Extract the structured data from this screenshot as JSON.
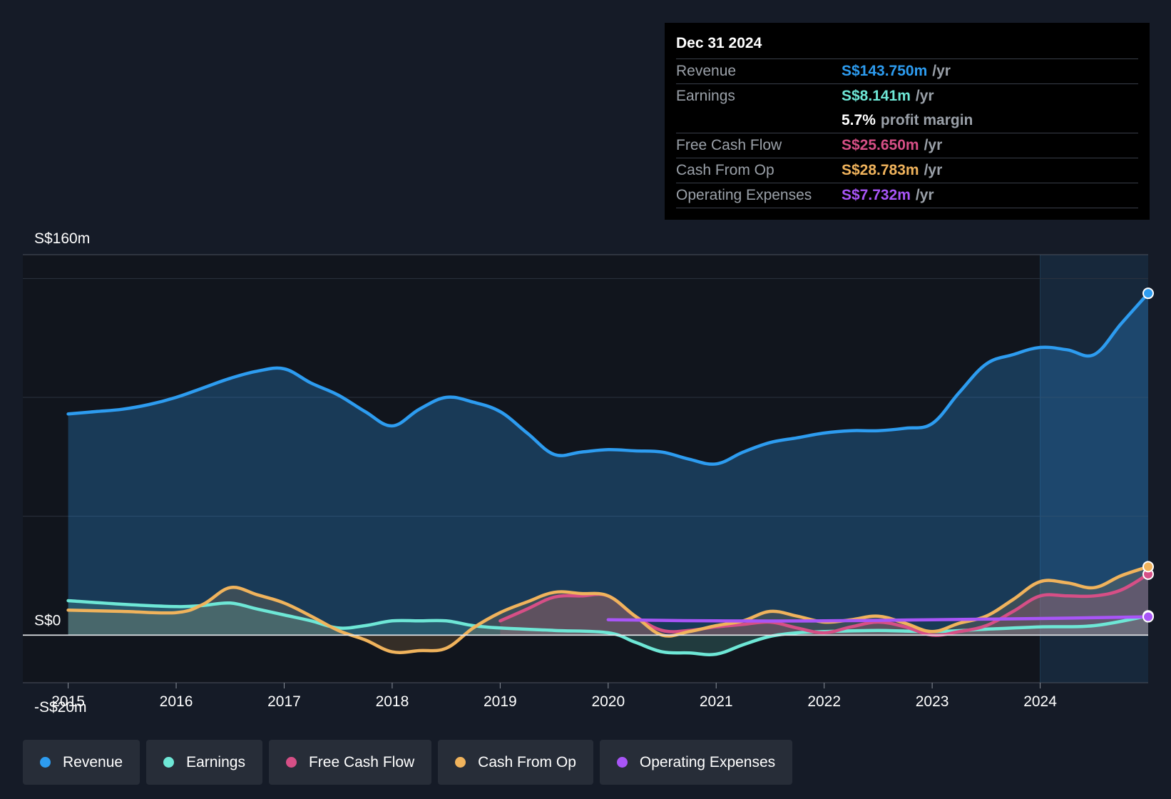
{
  "tooltip": {
    "date": "Dec 31 2024",
    "rows": [
      {
        "label": "Revenue",
        "value": "S$143.750m",
        "unit": "/yr",
        "color": "#2d9cf0"
      },
      {
        "label": "Earnings",
        "value": "S$8.141m",
        "unit": "/yr",
        "color": "#6ee7d6"
      },
      {
        "label": "",
        "value": "5.7%",
        "unit": "profit margin",
        "color": "#ffffff"
      },
      {
        "label": "Free Cash Flow",
        "value": "S$25.650m",
        "unit": "/yr",
        "color": "#d64f86"
      },
      {
        "label": "Cash From Op",
        "value": "S$28.783m",
        "unit": "/yr",
        "color": "#f0b35c"
      },
      {
        "label": "Operating Expenses",
        "value": "S$7.732m",
        "unit": "/yr",
        "color": "#a855f7"
      }
    ]
  },
  "legend": [
    {
      "label": "Revenue",
      "color": "#2d9cf0"
    },
    {
      "label": "Earnings",
      "color": "#6ee7d6"
    },
    {
      "label": "Free Cash Flow",
      "color": "#d64f86"
    },
    {
      "label": "Cash From Op",
      "color": "#f0b35c"
    },
    {
      "label": "Operating Expenses",
      "color": "#a855f7"
    }
  ],
  "chart_data": {
    "type": "line",
    "title": "",
    "unit": "S$m",
    "ylim": [
      -20,
      160
    ],
    "y_tick_labels": [
      {
        "value": 160,
        "label": "S$160m"
      },
      {
        "value": 0,
        "label": "S$0"
      },
      {
        "value": -20,
        "label": "-S$20m"
      }
    ],
    "gridlines": [
      150,
      100,
      50
    ],
    "x_ticks": [
      "2015",
      "2016",
      "2017",
      "2018",
      "2019",
      "2020",
      "2021",
      "2022",
      "2023",
      "2024"
    ],
    "xlim": [
      2014.58,
      2025.0
    ],
    "highlight_start": 2024.0,
    "series": [
      {
        "name": "Revenue",
        "color": "#2d9cf0",
        "points": [
          [
            2015.0,
            93
          ],
          [
            2015.25,
            94
          ],
          [
            2015.5,
            95
          ],
          [
            2015.75,
            97
          ],
          [
            2016.0,
            100
          ],
          [
            2016.25,
            104
          ],
          [
            2016.5,
            108
          ],
          [
            2016.75,
            111
          ],
          [
            2017.0,
            112
          ],
          [
            2017.25,
            106
          ],
          [
            2017.5,
            101
          ],
          [
            2017.75,
            94
          ],
          [
            2018.0,
            88
          ],
          [
            2018.25,
            95
          ],
          [
            2018.5,
            100
          ],
          [
            2018.75,
            98
          ],
          [
            2019.0,
            94
          ],
          [
            2019.25,
            85
          ],
          [
            2019.5,
            76
          ],
          [
            2019.75,
            77
          ],
          [
            2020.0,
            78
          ],
          [
            2020.25,
            77.5
          ],
          [
            2020.5,
            77
          ],
          [
            2020.75,
            74
          ],
          [
            2021.0,
            72
          ],
          [
            2021.25,
            77
          ],
          [
            2021.5,
            81
          ],
          [
            2021.75,
            83
          ],
          [
            2022.0,
            85
          ],
          [
            2022.25,
            86
          ],
          [
            2022.5,
            86
          ],
          [
            2022.75,
            87
          ],
          [
            2023.0,
            89
          ],
          [
            2023.25,
            102
          ],
          [
            2023.5,
            114
          ],
          [
            2023.75,
            118
          ],
          [
            2024.0,
            121
          ],
          [
            2024.25,
            120
          ],
          [
            2024.5,
            118
          ],
          [
            2024.75,
            131
          ],
          [
            2025.0,
            143.75
          ]
        ]
      },
      {
        "name": "Earnings",
        "color": "#6ee7d6",
        "points": [
          [
            2015.0,
            14.5
          ],
          [
            2015.5,
            13
          ],
          [
            2016.0,
            12
          ],
          [
            2016.25,
            12.5
          ],
          [
            2016.5,
            13.5
          ],
          [
            2016.75,
            11
          ],
          [
            2017.0,
            8.5
          ],
          [
            2017.25,
            6
          ],
          [
            2017.5,
            3
          ],
          [
            2017.75,
            4
          ],
          [
            2018.0,
            6
          ],
          [
            2018.25,
            6
          ],
          [
            2018.5,
            6
          ],
          [
            2018.75,
            4
          ],
          [
            2019.0,
            3
          ],
          [
            2019.5,
            2
          ],
          [
            2020.0,
            1
          ],
          [
            2020.25,
            -3
          ],
          [
            2020.5,
            -7
          ],
          [
            2020.75,
            -7.5
          ],
          [
            2021.0,
            -8
          ],
          [
            2021.25,
            -4
          ],
          [
            2021.5,
            -0.5
          ],
          [
            2021.75,
            1
          ],
          [
            2022.0,
            1.5
          ],
          [
            2022.5,
            2
          ],
          [
            2023.0,
            1.5
          ],
          [
            2023.5,
            2.5
          ],
          [
            2024.0,
            3.5
          ],
          [
            2024.5,
            4
          ],
          [
            2025.0,
            8.141
          ]
        ]
      },
      {
        "name": "Free Cash Flow",
        "color": "#d64f86",
        "points": [
          [
            2019.0,
            6
          ],
          [
            2019.25,
            11
          ],
          [
            2019.5,
            16
          ],
          [
            2019.75,
            16.5
          ],
          [
            2020.0,
            16.5
          ],
          [
            2020.25,
            8
          ],
          [
            2020.5,
            2
          ],
          [
            2020.75,
            2
          ],
          [
            2021.0,
            3.5
          ],
          [
            2021.25,
            4.5
          ],
          [
            2021.5,
            5.5
          ],
          [
            2021.75,
            3
          ],
          [
            2022.0,
            1
          ],
          [
            2022.25,
            3.5
          ],
          [
            2022.5,
            5.5
          ],
          [
            2022.75,
            3.5
          ],
          [
            2023.0,
            0
          ],
          [
            2023.25,
            1.5
          ],
          [
            2023.5,
            4
          ],
          [
            2023.75,
            10
          ],
          [
            2024.0,
            16.5
          ],
          [
            2024.25,
            16.5
          ],
          [
            2024.5,
            16.5
          ],
          [
            2024.75,
            19
          ],
          [
            2025.0,
            25.65
          ]
        ]
      },
      {
        "name": "Cash From Op",
        "color": "#f0b35c",
        "points": [
          [
            2015.0,
            10.5
          ],
          [
            2015.5,
            10
          ],
          [
            2016.0,
            9.5
          ],
          [
            2016.25,
            13
          ],
          [
            2016.5,
            20
          ],
          [
            2016.75,
            17
          ],
          [
            2017.0,
            13.5
          ],
          [
            2017.25,
            8
          ],
          [
            2017.5,
            2
          ],
          [
            2017.75,
            -2
          ],
          [
            2018.0,
            -7
          ],
          [
            2018.25,
            -6.5
          ],
          [
            2018.5,
            -5.5
          ],
          [
            2018.75,
            3
          ],
          [
            2019.0,
            9.5
          ],
          [
            2019.25,
            14
          ],
          [
            2019.5,
            18
          ],
          [
            2019.75,
            17.5
          ],
          [
            2020.0,
            16.5
          ],
          [
            2020.25,
            8
          ],
          [
            2020.5,
            0
          ],
          [
            2020.75,
            1.5
          ],
          [
            2021.0,
            4
          ],
          [
            2021.25,
            6
          ],
          [
            2021.5,
            10
          ],
          [
            2021.75,
            8
          ],
          [
            2022.0,
            5.5
          ],
          [
            2022.25,
            6.5
          ],
          [
            2022.5,
            8
          ],
          [
            2022.75,
            5
          ],
          [
            2023.0,
            1.5
          ],
          [
            2023.25,
            5
          ],
          [
            2023.5,
            8
          ],
          [
            2023.75,
            15
          ],
          [
            2024.0,
            22.5
          ],
          [
            2024.25,
            22
          ],
          [
            2024.5,
            20
          ],
          [
            2024.75,
            25
          ],
          [
            2025.0,
            28.783
          ]
        ]
      },
      {
        "name": "Operating Expenses",
        "color": "#a855f7",
        "points": [
          [
            2020.0,
            6.5
          ],
          [
            2021.0,
            6
          ],
          [
            2022.0,
            6
          ],
          [
            2023.0,
            6.5
          ],
          [
            2024.0,
            7
          ],
          [
            2025.0,
            7.732
          ]
        ]
      }
    ]
  }
}
